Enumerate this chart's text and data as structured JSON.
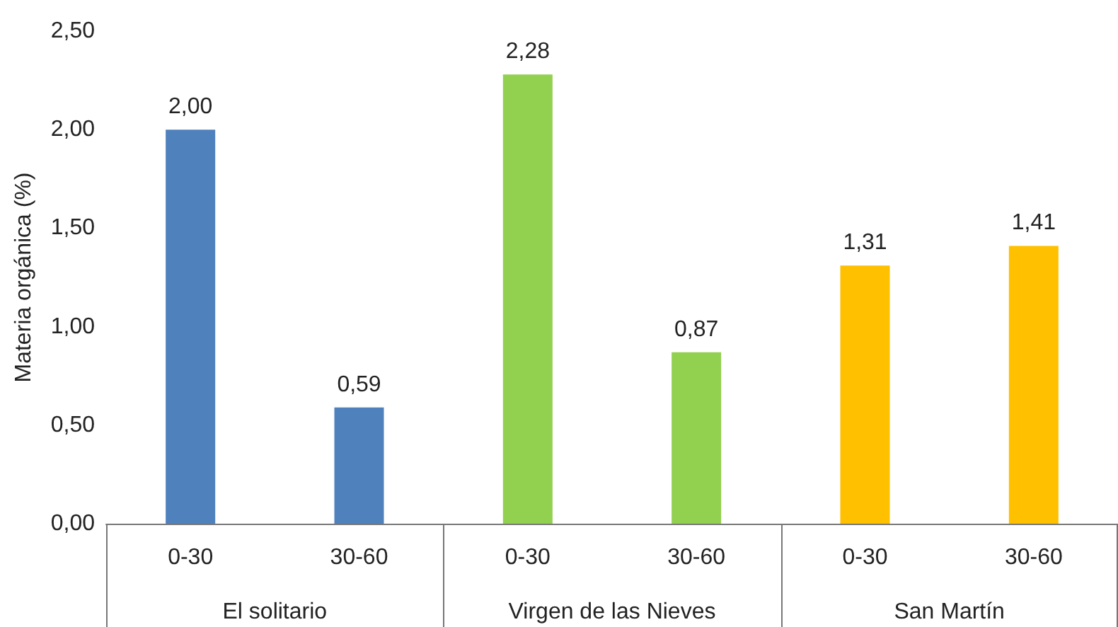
{
  "chart_data": {
    "type": "bar",
    "ylabel": "Materia orgánica (%)",
    "annotations": [
      "El solitario",
      "Virgen de las Nieves",
      "San Martín"
    ],
    "categories": [
      "0-30",
      "30-60",
      "0-30",
      "30-60",
      "0-30",
      "30-60"
    ],
    "stacked": true,
    "grid": false,
    "ylim": [
      0,
      2.5
    ],
    "yticks": [
      {
        "value": 0,
        "label": "0,00"
      },
      {
        "value": 0.5,
        "label": "0,50"
      },
      {
        "value": 1,
        "label": "1,00"
      },
      {
        "value": 1.5,
        "label": "1,50"
      },
      {
        "value": 2,
        "label": "2,00"
      },
      {
        "value": 2.5,
        "label": "2,50"
      }
    ],
    "series": [
      {
        "color": "#4f81bd",
        "values": [
          2.0,
          0.59,
          null,
          null,
          null,
          null
        ],
        "value_labels": [
          "2,00",
          "0,59",
          null,
          null,
          null,
          null
        ]
      },
      {
        "color": "#92d050",
        "values": [
          null,
          null,
          2.28,
          0.87,
          null,
          null
        ],
        "value_labels": [
          null,
          null,
          "2,28",
          "0,87",
          null,
          null
        ]
      },
      {
        "color": "#ffc000",
        "values": [
          null,
          null,
          null,
          null,
          1.31,
          1.41
        ],
        "value_labels": [
          null,
          null,
          null,
          null,
          "1,31",
          "1,41"
        ]
      }
    ]
  }
}
